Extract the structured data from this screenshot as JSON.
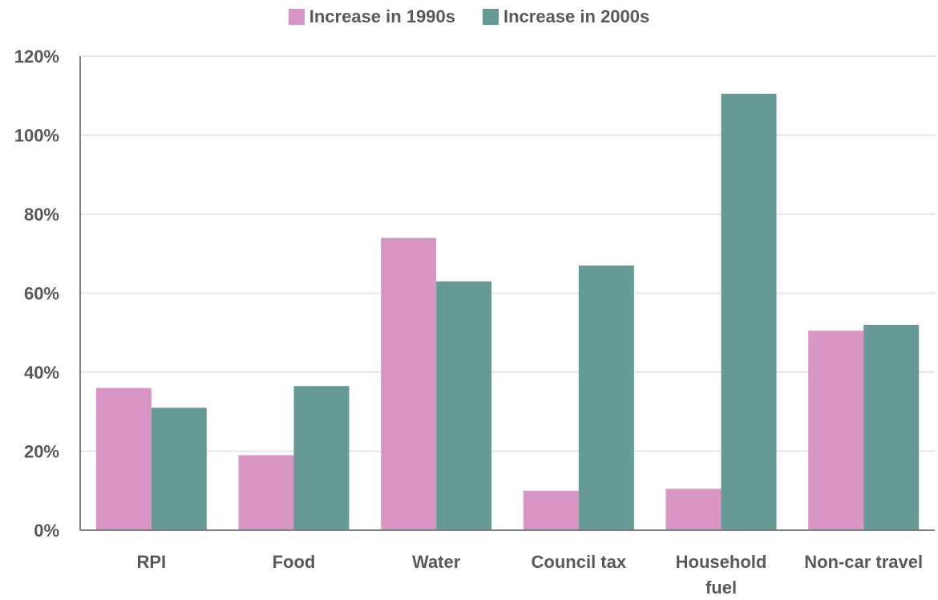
{
  "chart_data": {
    "type": "bar",
    "categories": [
      "RPI",
      "Food",
      "Water",
      "Council tax",
      "Household fuel",
      "Non-car travel"
    ],
    "category_lines": [
      [
        "RPI"
      ],
      [
        "Food"
      ],
      [
        "Water"
      ],
      [
        "Council tax"
      ],
      [
        "Household",
        "fuel"
      ],
      [
        "Non-car travel"
      ]
    ],
    "series": [
      {
        "name": "Increase in 1990s",
        "color": "#d996c4",
        "values": [
          36,
          19,
          74,
          10,
          10.5,
          50.5
        ]
      },
      {
        "name": "Increase in 2000s",
        "color": "#669a96",
        "values": [
          31,
          36.5,
          63,
          67,
          110.5,
          52
        ]
      }
    ],
    "ylim": [
      0,
      120
    ],
    "yticks": [
      0,
      20,
      40,
      60,
      80,
      100,
      120
    ],
    "ytick_labels": [
      "0%",
      "20%",
      "40%",
      "60%",
      "80%",
      "100%",
      "120%"
    ],
    "grid": true,
    "legend_position": "top",
    "title": "",
    "xlabel": "",
    "ylabel": ""
  }
}
